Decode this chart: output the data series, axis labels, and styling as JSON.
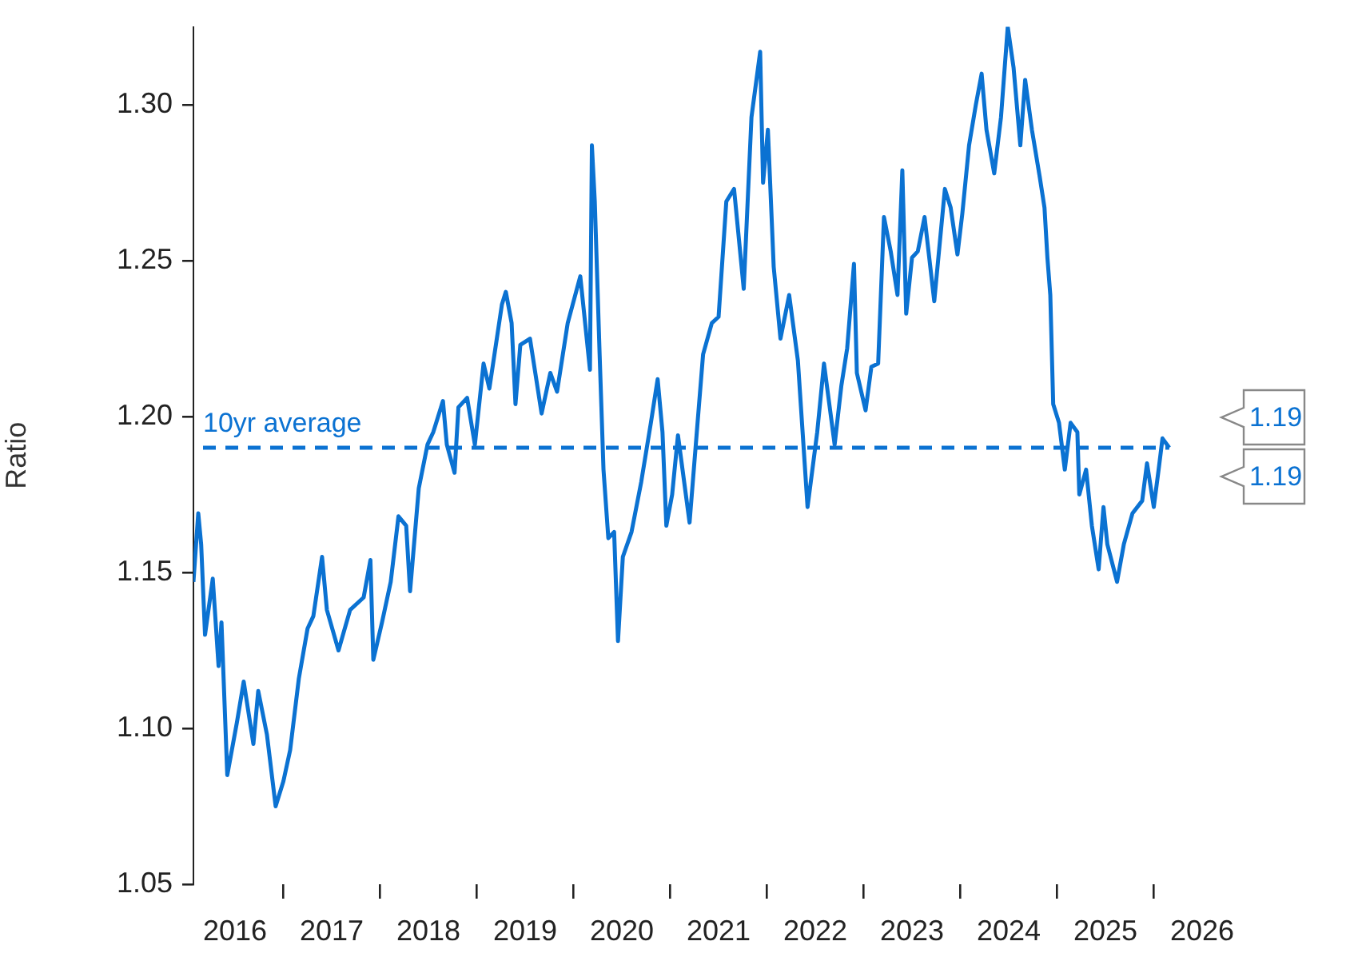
{
  "chart_data": {
    "type": "line",
    "ylabel": "Ratio",
    "xlim": [
      2016.07,
      2026.5
    ],
    "ylim": [
      1.05,
      1.325
    ],
    "xticks": [
      {
        "value": 2016.5,
        "label": "2016"
      },
      {
        "value": 2017,
        "label": null
      },
      {
        "value": 2017.5,
        "label": "2017"
      },
      {
        "value": 2018,
        "label": null
      },
      {
        "value": 2018.5,
        "label": "2018"
      },
      {
        "value": 2019,
        "label": null
      },
      {
        "value": 2019.5,
        "label": "2019"
      },
      {
        "value": 2020,
        "label": null
      },
      {
        "value": 2020.5,
        "label": "2020"
      },
      {
        "value": 2021,
        "label": null
      },
      {
        "value": 2021.5,
        "label": "2021"
      },
      {
        "value": 2022,
        "label": null
      },
      {
        "value": 2022.5,
        "label": "2022"
      },
      {
        "value": 2023,
        "label": null
      },
      {
        "value": 2023.5,
        "label": "2023"
      },
      {
        "value": 2024,
        "label": null
      },
      {
        "value": 2024.5,
        "label": "2024"
      },
      {
        "value": 2025,
        "label": null
      },
      {
        "value": 2025.5,
        "label": "2025"
      },
      {
        "value": 2026,
        "label": null
      },
      {
        "value": 2026.5,
        "label": "2026"
      }
    ],
    "yticks": [
      1.05,
      {
        "value": 1.1,
        "label": "1.10"
      },
      1.15,
      {
        "value": 1.2,
        "label": "1.20"
      },
      1.25,
      {
        "value": 1.3,
        "label": "1.30"
      }
    ],
    "grid": false,
    "legend": false,
    "marker": "none",
    "line_style": "solid",
    "ref_lines": [
      {
        "axis": "y",
        "value": 1.19,
        "label": "10yr average",
        "color": "#0b72d2",
        "line_style": "dashed"
      }
    ],
    "annotations": [
      "1.19",
      "1.19"
    ],
    "series": [
      {
        "color": "#0b72d2",
        "x": [
          2016.07,
          2016.12,
          2016.15,
          2016.19,
          2016.27,
          2016.33,
          2016.36,
          2016.42,
          2016.52,
          2016.59,
          2016.69,
          2016.74,
          2016.83,
          2016.92,
          2017.0,
          2017.07,
          2017.16,
          2017.25,
          2017.31,
          2017.4,
          2017.45,
          2017.57,
          2017.69,
          2017.83,
          2017.9,
          2017.93,
          2018.02,
          2018.11,
          2018.19,
          2018.27,
          2018.31,
          2018.4,
          2018.49,
          2018.55,
          2018.65,
          2018.69,
          2018.77,
          2018.81,
          2018.9,
          2018.98,
          2019.07,
          2019.13,
          2019.26,
          2019.3,
          2019.36,
          2019.4,
          2019.45,
          2019.55,
          2019.6,
          2019.67,
          2019.76,
          2019.83,
          2019.94,
          2020.07,
          2020.17,
          2020.19,
          2020.22,
          2020.27,
          2020.31,
          2020.36,
          2020.42,
          2020.46,
          2020.51,
          2020.6,
          2020.7,
          2020.8,
          2020.87,
          2020.92,
          2020.96,
          2021.02,
          2021.08,
          2021.2,
          2021.28,
          2021.34,
          2021.43,
          2021.5,
          2021.58,
          2021.66,
          2021.76,
          2021.84,
          2021.93,
          2021.96,
          2022.01,
          2022.07,
          2022.14,
          2022.23,
          2022.32,
          2022.42,
          2022.52,
          2022.59,
          2022.7,
          2022.77,
          2022.83,
          2022.9,
          2022.93,
          2023.02,
          2023.08,
          2023.15,
          2023.21,
          2023.28,
          2023.35,
          2023.4,
          2023.44,
          2023.5,
          2023.56,
          2023.63,
          2023.73,
          2023.84,
          2023.9,
          2023.97,
          2024.02,
          2024.09,
          2024.16,
          2024.22,
          2024.27,
          2024.35,
          2024.42,
          2024.49,
          2024.55,
          2024.62,
          2024.67,
          2024.74,
          2024.82,
          2024.87,
          2024.9,
          2024.93,
          2024.96,
          2025.02,
          2025.08,
          2025.14,
          2025.21,
          2025.23,
          2025.3,
          2025.36,
          2025.43,
          2025.48,
          2025.52,
          2025.62,
          2025.69,
          2025.78,
          2025.88,
          2025.93,
          2026.0,
          2026.05,
          2026.09,
          2026.16
        ],
        "values": [
          1.147,
          1.169,
          1.159,
          1.13,
          1.148,
          1.12,
          1.134,
          1.085,
          1.102,
          1.115,
          1.095,
          1.112,
          1.098,
          1.075,
          1.083,
          1.093,
          1.116,
          1.132,
          1.136,
          1.155,
          1.138,
          1.125,
          1.138,
          1.142,
          1.154,
          1.122,
          1.134,
          1.147,
          1.168,
          1.165,
          1.144,
          1.177,
          1.191,
          1.195,
          1.205,
          1.191,
          1.182,
          1.203,
          1.206,
          1.191,
          1.217,
          1.209,
          1.236,
          1.24,
          1.23,
          1.204,
          1.223,
          1.225,
          1.215,
          1.201,
          1.214,
          1.208,
          1.23,
          1.245,
          1.215,
          1.287,
          1.269,
          1.22,
          1.183,
          1.161,
          1.163,
          1.128,
          1.155,
          1.163,
          1.179,
          1.198,
          1.212,
          1.195,
          1.165,
          1.175,
          1.194,
          1.166,
          1.197,
          1.22,
          1.23,
          1.232,
          1.269,
          1.273,
          1.241,
          1.296,
          1.317,
          1.275,
          1.292,
          1.248,
          1.225,
          1.239,
          1.218,
          1.171,
          1.195,
          1.217,
          1.191,
          1.21,
          1.222,
          1.249,
          1.214,
          1.202,
          1.216,
          1.217,
          1.264,
          1.253,
          1.239,
          1.279,
          1.233,
          1.251,
          1.253,
          1.264,
          1.237,
          1.273,
          1.267,
          1.252,
          1.265,
          1.287,
          1.3,
          1.31,
          1.292,
          1.278,
          1.296,
          1.325,
          1.312,
          1.287,
          1.308,
          1.292,
          1.277,
          1.267,
          1.251,
          1.239,
          1.204,
          1.198,
          1.183,
          1.198,
          1.195,
          1.175,
          1.183,
          1.165,
          1.151,
          1.171,
          1.159,
          1.147,
          1.159,
          1.169,
          1.173,
          1.185,
          1.171,
          1.183,
          1.193,
          1.19
        ]
      }
    ]
  }
}
